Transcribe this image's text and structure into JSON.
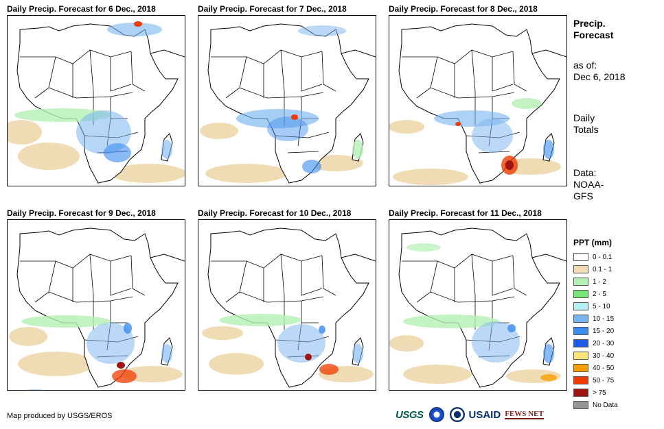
{
  "panels": [
    {
      "title": "Daily Precip. Forecast for 6 Dec., 2018"
    },
    {
      "title": "Daily Precip. Forecast for 7 Dec., 2018"
    },
    {
      "title": "Daily Precip. Forecast for 8 Dec., 2018"
    },
    {
      "title": "Daily Precip. Forecast for 9 Dec., 2018"
    },
    {
      "title": "Daily Precip. Forecast for 10 Dec., 2018"
    },
    {
      "title": "Daily Precip. Forecast for 11 Dec., 2018"
    }
  ],
  "sidebar": {
    "title_line1": "Precip.",
    "title_line2": "Forecast",
    "asof_label": "as of:",
    "asof_date": "Dec 6, 2018",
    "totals_line1": "Daily",
    "totals_line2": "Totals",
    "data_line1": "Data:",
    "data_line2": "NOAA-",
    "data_line3": "GFS"
  },
  "legend": {
    "title": "PPT (mm)",
    "items": [
      {
        "label": "0 - 0.1",
        "color": "#ffffff"
      },
      {
        "label": "0.1 - 1",
        "color": "#f0dcb4"
      },
      {
        "label": "1 - 2",
        "color": "#b4f0b4"
      },
      {
        "label": "2 - 5",
        "color": "#78e678"
      },
      {
        "label": "5 - 10",
        "color": "#b4eef0"
      },
      {
        "label": "10 - 15",
        "color": "#78b4f0"
      },
      {
        "label": "15 - 20",
        "color": "#3c8cf0"
      },
      {
        "label": "20 - 30",
        "color": "#1e5ae6"
      },
      {
        "label": "30 - 40",
        "color": "#f8e678"
      },
      {
        "label": "40 - 50",
        "color": "#f8a000"
      },
      {
        "label": "50 - 75",
        "color": "#f03c00"
      },
      {
        "label": "> 75",
        "color": "#a01414"
      },
      {
        "label": "No Data",
        "color": "#969696"
      }
    ]
  },
  "footer": {
    "credit": "Map produced by USGS/EROS",
    "logo_usgs": "USGS",
    "logo_usaid": "USAID",
    "logo_fews": "FEWS NET"
  }
}
